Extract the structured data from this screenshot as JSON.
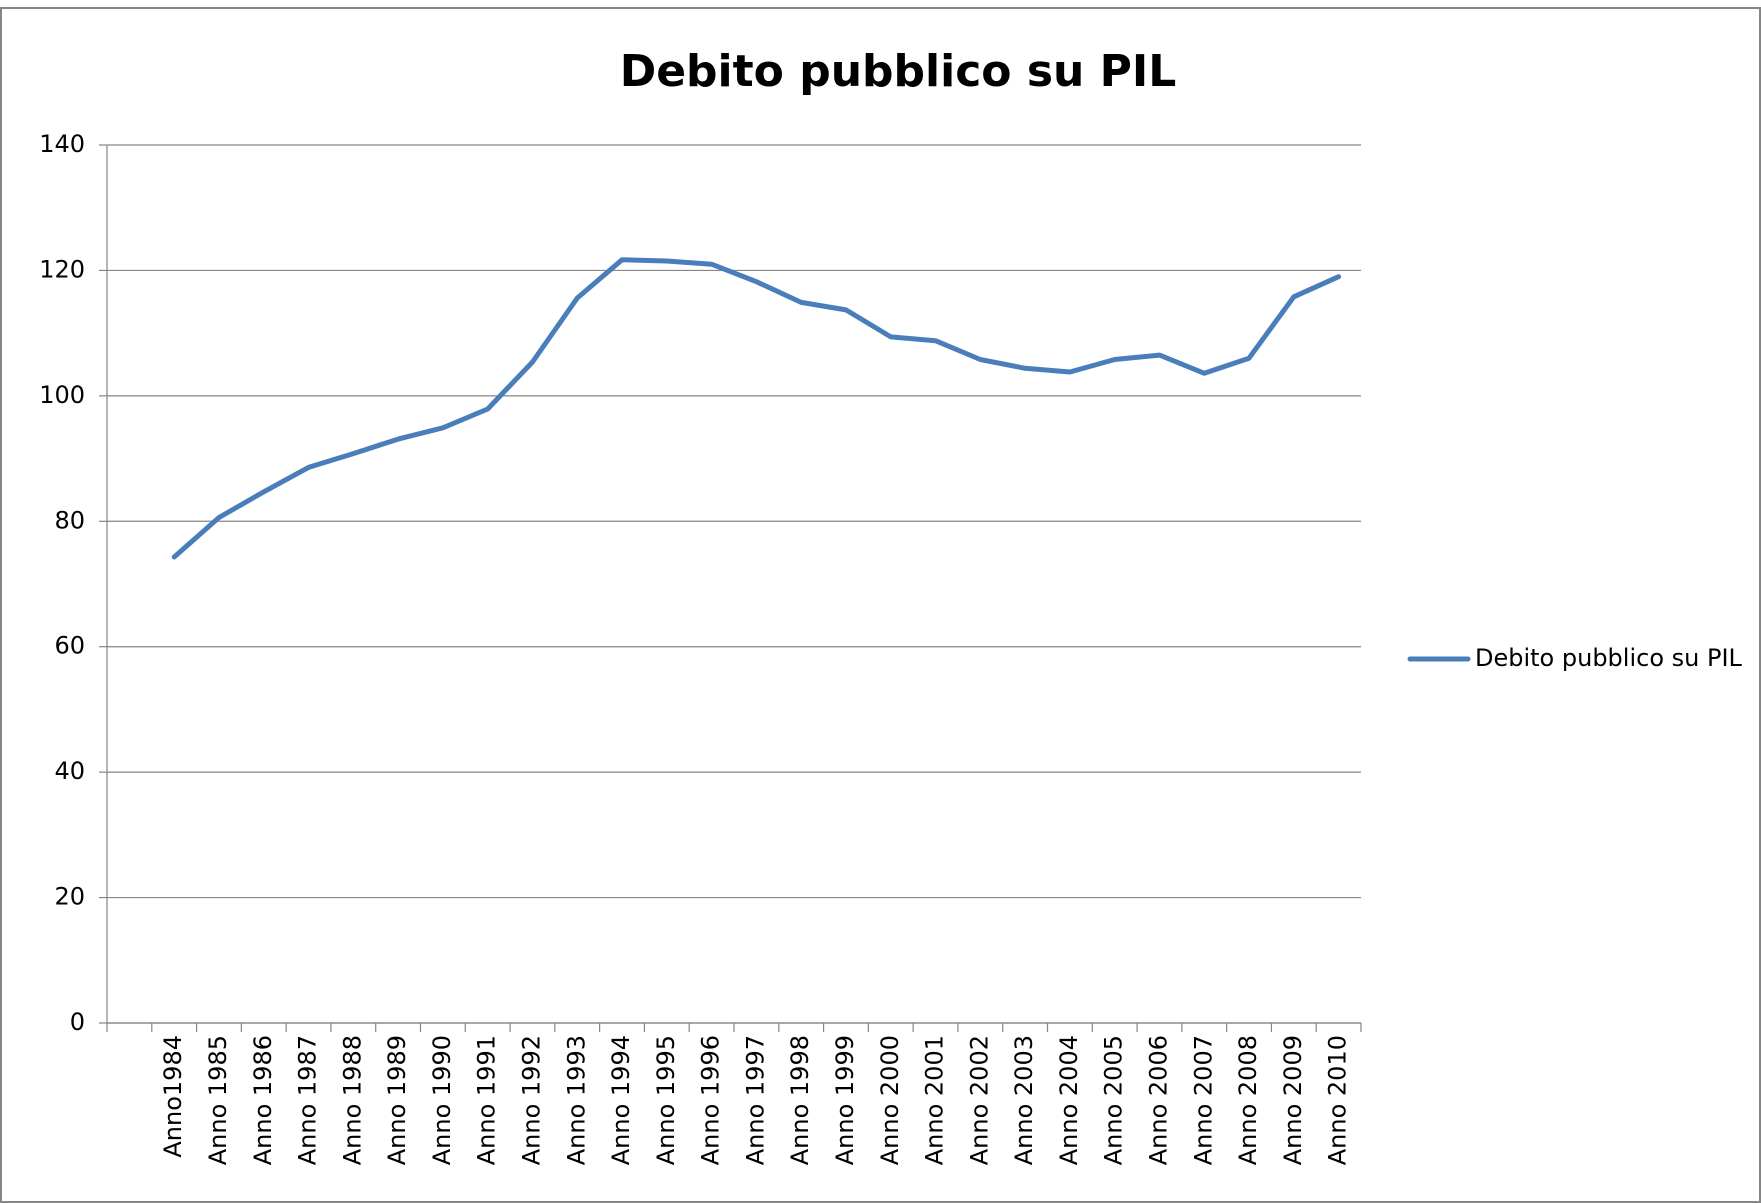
{
  "chart_data": {
    "type": "line",
    "title": "Debito pubblico su PIL",
    "categories": [
      null,
      "Anno1984",
      "Anno 1985",
      "Anno 1986",
      "Anno 1987",
      "Anno 1988",
      "Anno 1989",
      "Anno 1990",
      "Anno 1991",
      "Anno 1992",
      "Anno 1993",
      "Anno 1994",
      "Anno 1995",
      "Anno 1996",
      "Anno 1997",
      "Anno 1998",
      "Anno 1999",
      "Anno 2000",
      "Anno 2001",
      "Anno 2002",
      "Anno 2003",
      "Anno 2004",
      "Anno 2005",
      "Anno 2006",
      "Anno 2007",
      "Anno 2008",
      "Anno 2009",
      "Anno 2010"
    ],
    "series": [
      {
        "name": "Debito pubblico su PIL",
        "color": "#4a7ebb",
        "values": [
          null,
          74.3,
          80.6,
          84.7,
          88.6,
          90.8,
          93.1,
          94.9,
          97.9,
          105.4,
          115.6,
          121.7,
          121.5,
          121.0,
          118.2,
          114.9,
          113.7,
          109.4,
          108.8,
          105.8,
          104.4,
          103.8,
          105.8,
          106.5,
          103.6,
          106.0,
          115.8,
          119.0
        ]
      }
    ],
    "ylim": [
      0,
      140
    ],
    "yticks": [
      0,
      20,
      40,
      60,
      80,
      100,
      120,
      140
    ],
    "grid": true,
    "legend": "right"
  }
}
